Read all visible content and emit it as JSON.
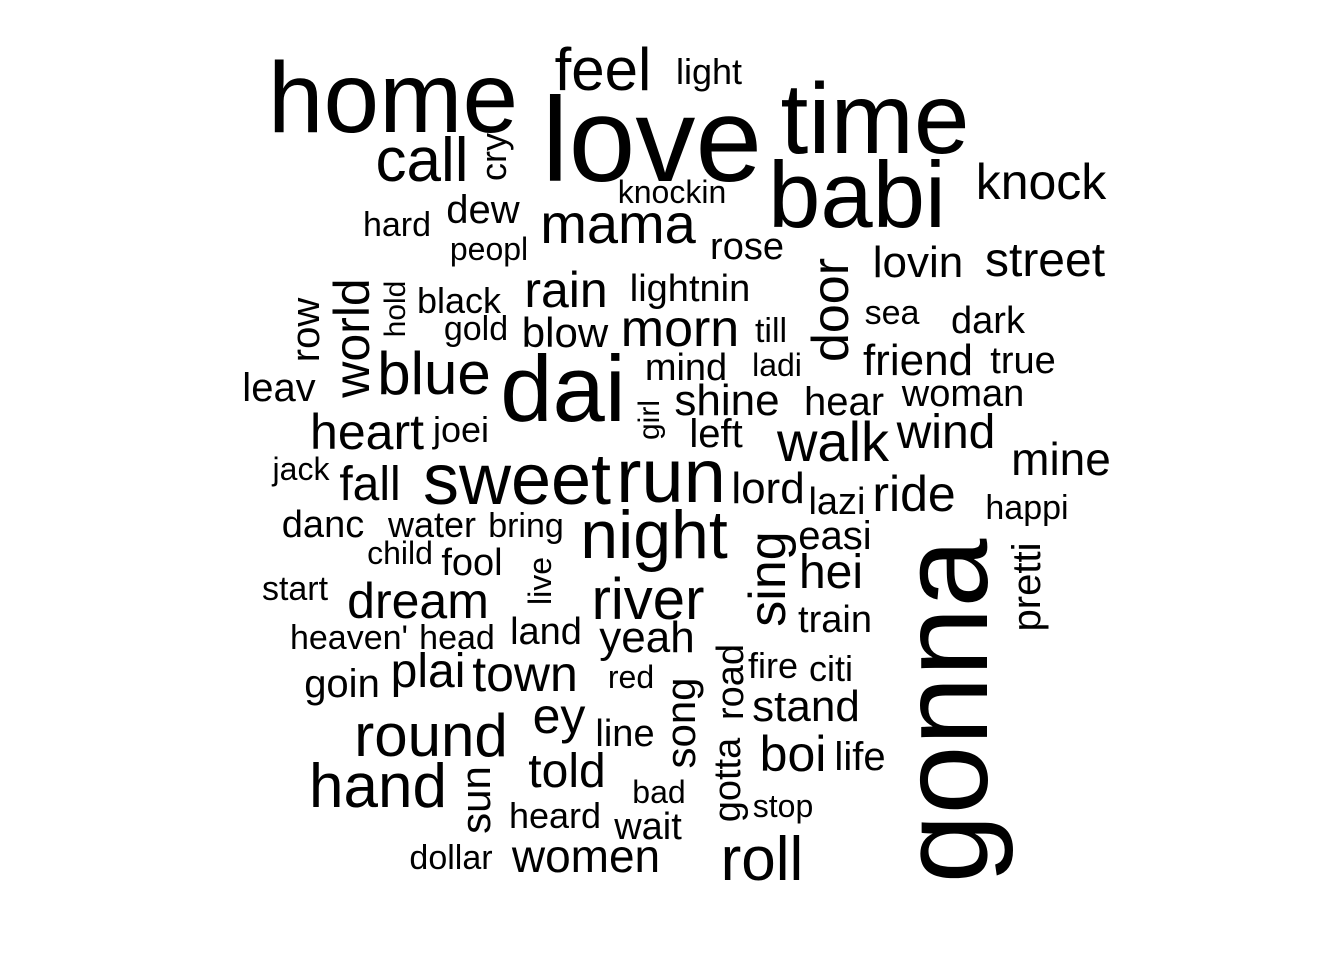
{
  "text_color": "#000000",
  "background": "#ffffff",
  "words": [
    "home",
    "feel",
    "light",
    "love",
    "time",
    "call",
    "cry",
    "babi",
    "knock",
    "knockin",
    "dew",
    "hard",
    "mama",
    "peopl",
    "rose",
    "door",
    "lovin",
    "street",
    "rain",
    "lightnin",
    "hold",
    "black",
    "row",
    "world",
    "gold",
    "blow",
    "morn",
    "till",
    "sea",
    "dark",
    "blue",
    "ladi",
    "friend",
    "true",
    "mind",
    "leav",
    "dai",
    "shine",
    "woman",
    "heart",
    "joei",
    "girl",
    "left",
    "hear",
    "walk",
    "wind",
    "jack",
    "fall",
    "sweet",
    "run",
    "mine",
    "lord",
    "lazi",
    "ride",
    "happi",
    "danc",
    "water",
    "bring",
    "night",
    "easi",
    "child",
    "fool",
    "sing",
    "live",
    "start",
    "dream",
    "hei",
    "river",
    "pretti",
    "gonna",
    "train",
    "heaven'",
    "head",
    "land",
    "yeah",
    "plai",
    "town",
    "red",
    "fire",
    "citi",
    "goin",
    "road",
    "stand",
    "ey",
    "round",
    "line",
    "song",
    "boi",
    "life",
    "told",
    "hand",
    "sun",
    "gotta",
    "bad",
    "stop",
    "heard",
    "wait",
    "roll",
    "women",
    "dollar"
  ]
}
